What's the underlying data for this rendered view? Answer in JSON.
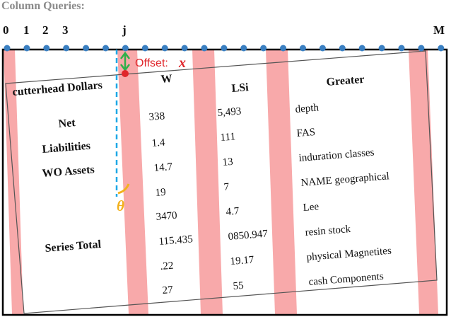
{
  "figure": {
    "heading": "Column Queries:",
    "column_labels": [
      "0",
      "1",
      "2",
      "3",
      "j",
      "M"
    ],
    "offset_label": "Offset:",
    "offset_symbol": "x",
    "angle_symbol": "θ"
  },
  "table": {
    "header": [
      "cutterhead Dollars",
      "W",
      "LSi",
      "Greater"
    ],
    "row_labels": [
      "Net",
      "Liabilities",
      "WO Assets",
      "Series Total"
    ],
    "col_w": [
      "338",
      "1.4",
      "14.7",
      "19",
      "3470",
      "115.435",
      ".22",
      "27"
    ],
    "col_lsi": [
      "5,493",
      "111",
      "13",
      "7",
      "4.7",
      "0850.947",
      "19.17",
      "55"
    ],
    "col_greater": [
      "depth",
      "FAS",
      "induration classes",
      "NAME geographical",
      "Lee",
      "resin stock",
      "physical Magnetites",
      "cash Components"
    ]
  },
  "colors": {
    "query_dot": "#3a7fc1",
    "stripe": "#f8a9aa",
    "dashed_line": "#1ea8e6",
    "offset_arrow": "#2fb04a",
    "offset_text": "#e0262b",
    "angle": "#f2b11c"
  }
}
